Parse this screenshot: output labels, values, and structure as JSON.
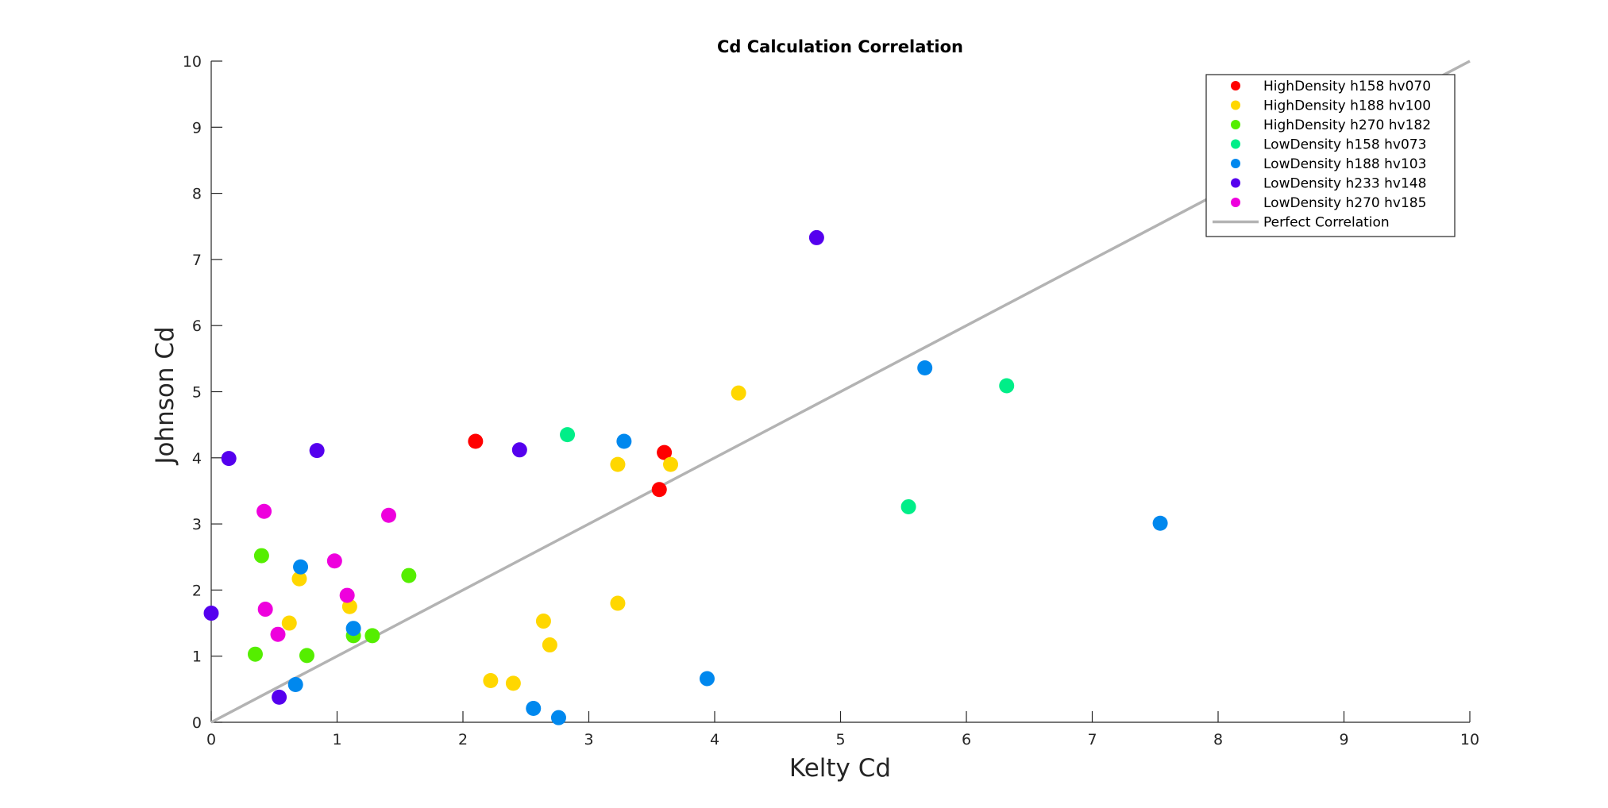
{
  "chart_data": {
    "type": "scatter",
    "title": "Cd Calculation Correlation",
    "xlabel": "Kelty Cd",
    "ylabel": "Johnson Cd",
    "xlim": [
      0,
      10
    ],
    "ylim": [
      0,
      10
    ],
    "xticks": [
      "0",
      "1",
      "2",
      "3",
      "4",
      "5",
      "6",
      "7",
      "8",
      "9",
      "10"
    ],
    "yticks": [
      "0",
      "1",
      "2",
      "3",
      "4",
      "5",
      "6",
      "7",
      "8",
      "9",
      "10"
    ],
    "grid": false,
    "legend_position": "top-right",
    "series": [
      {
        "name": "HighDensity h158 hv070",
        "color": "#ff0000",
        "points": [
          [
            2.1,
            4.25
          ],
          [
            3.6,
            4.08
          ],
          [
            3.56,
            3.52
          ]
        ]
      },
      {
        "name": "HighDensity h188 hv100",
        "color": "#ffd700",
        "points": [
          [
            4.19,
            4.98
          ],
          [
            3.23,
            3.9
          ],
          [
            3.65,
            3.9
          ],
          [
            3.23,
            1.8
          ],
          [
            2.64,
            1.53
          ],
          [
            2.69,
            1.17
          ],
          [
            2.22,
            0.63
          ],
          [
            2.4,
            0.59
          ],
          [
            0.7,
            2.17
          ],
          [
            0.62,
            1.5
          ],
          [
            1.1,
            1.75
          ]
        ]
      },
      {
        "name": "HighDensity h270 hv182",
        "color": "#55ee00",
        "points": [
          [
            0.4,
            2.52
          ],
          [
            1.57,
            2.22
          ],
          [
            0.35,
            1.03
          ],
          [
            0.76,
            1.01
          ],
          [
            1.13,
            1.31
          ],
          [
            1.28,
            1.31
          ]
        ]
      },
      {
        "name": "LowDensity h158 hv073",
        "color": "#00ee88",
        "points": [
          [
            2.83,
            4.35
          ],
          [
            6.32,
            5.09
          ],
          [
            5.54,
            3.26
          ]
        ]
      },
      {
        "name": "LowDensity h188 hv103",
        "color": "#0088ee",
        "points": [
          [
            3.28,
            4.25
          ],
          [
            5.67,
            5.36
          ],
          [
            7.54,
            3.01
          ],
          [
            3.94,
            0.66
          ],
          [
            2.56,
            0.21
          ],
          [
            2.76,
            0.07
          ],
          [
            0.71,
            2.35
          ],
          [
            1.13,
            1.42
          ],
          [
            0.67,
            0.57
          ]
        ]
      },
      {
        "name": "LowDensity h233 hv148",
        "color": "#5500ee",
        "points": [
          [
            4.81,
            7.33
          ],
          [
            0.14,
            3.99
          ],
          [
            0.84,
            4.11
          ],
          [
            2.45,
            4.12
          ],
          [
            0.0,
            1.65
          ],
          [
            0.54,
            0.38
          ]
        ]
      },
      {
        "name": "LowDensity h270 hv185",
        "color": "#ee00dd",
        "points": [
          [
            0.42,
            3.19
          ],
          [
            1.41,
            3.13
          ],
          [
            0.98,
            2.44
          ],
          [
            1.08,
            1.92
          ],
          [
            0.43,
            1.71
          ],
          [
            0.53,
            1.33
          ]
        ]
      }
    ],
    "reference_line": {
      "name": "Perfect Correlation",
      "color": "#b3b3b3",
      "points": [
        [
          0,
          0
        ],
        [
          10,
          10
        ]
      ]
    }
  }
}
